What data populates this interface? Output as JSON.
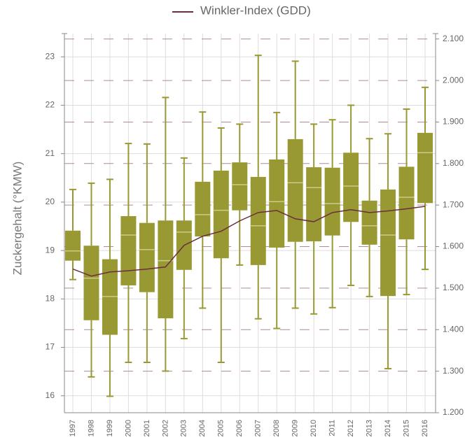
{
  "chart_data": {
    "type": "box",
    "legend_position": "top",
    "y_label": "Zuckergehalt (°KMW)",
    "categories": [
      "1997",
      "1998",
      "1999",
      "2000",
      "2001",
      "2002",
      "2003",
      "2004",
      "2005",
      "2006",
      "2007",
      "2008",
      "2009",
      "2010",
      "2011",
      "2012",
      "2013",
      "2014",
      "2015",
      "2016"
    ],
    "box_color": "#999933",
    "median_color": "#cccc88",
    "boxes": [
      {
        "low": 18.4,
        "q1": 18.79,
        "median": 18.99,
        "q3": 19.41,
        "high": 20.26
      },
      {
        "low": 16.39,
        "q1": 17.56,
        "median": 18.43,
        "q3": 19.1,
        "high": 20.39
      },
      {
        "low": 15.99,
        "q1": 17.26,
        "median": 18.05,
        "q3": 18.82,
        "high": 20.47
      },
      {
        "low": 16.69,
        "q1": 18.28,
        "median": 19.32,
        "q3": 19.71,
        "high": 21.21
      },
      {
        "low": 16.69,
        "q1": 18.14,
        "median": 19.02,
        "q3": 19.57,
        "high": 21.2
      },
      {
        "low": 16.51,
        "q1": 17.6,
        "median": 18.79,
        "q3": 19.62,
        "high": 22.16
      },
      {
        "low": 17.18,
        "q1": 18.6,
        "median": 19.38,
        "q3": 19.62,
        "high": 20.91
      },
      {
        "low": 17.81,
        "q1": 19.29,
        "median": 19.74,
        "q3": 20.42,
        "high": 21.86
      },
      {
        "low": 16.69,
        "q1": 18.84,
        "median": 19.83,
        "q3": 20.65,
        "high": 21.53
      },
      {
        "low": 18.7,
        "q1": 19.83,
        "median": 20.36,
        "q3": 20.82,
        "high": 21.61
      },
      {
        "low": 17.59,
        "q1": 18.7,
        "median": 19.51,
        "q3": 20.52,
        "high": 23.03
      },
      {
        "low": 17.39,
        "q1": 19.06,
        "median": 20.01,
        "q3": 20.88,
        "high": 21.85
      },
      {
        "low": 17.81,
        "q1": 19.18,
        "median": 20.4,
        "q3": 21.3,
        "high": 22.91
      },
      {
        "low": 17.69,
        "q1": 19.19,
        "median": 20.3,
        "q3": 20.72,
        "high": 21.61
      },
      {
        "low": 17.82,
        "q1": 19.31,
        "median": 19.97,
        "q3": 20.71,
        "high": 21.7
      },
      {
        "low": 18.28,
        "q1": 19.59,
        "median": 20.33,
        "q3": 21.02,
        "high": 22.0
      },
      {
        "low": 18.05,
        "q1": 19.12,
        "median": 19.51,
        "q3": 20.03,
        "high": 21.31
      },
      {
        "low": 16.56,
        "q1": 18.06,
        "median": 19.32,
        "q3": 20.26,
        "high": 21.41
      },
      {
        "low": 18.09,
        "q1": 19.23,
        "median": 20.1,
        "q3": 20.73,
        "high": 21.92
      },
      {
        "low": 18.61,
        "q1": 19.98,
        "median": 21.02,
        "q3": 21.43,
        "high": 22.37
      }
    ],
    "series": [
      {
        "name": "Winkler-Index (GDD)",
        "color": "#6b2e3e",
        "axis": "y2",
        "values": [
          1.546,
          1.529,
          1.539,
          1.542,
          1.546,
          1.551,
          1.603,
          1.625,
          1.637,
          1.662,
          1.682,
          1.687,
          1.667,
          1.66,
          1.682,
          1.689,
          1.682,
          1.686,
          1.691,
          1.697
        ]
      }
    ],
    "ylim": [
      15.65,
      23.48
    ],
    "yticks": [
      16,
      17,
      18,
      19,
      20,
      21,
      22,
      23
    ],
    "y2lim": [
      1.2,
      2.113
    ],
    "y2ticks": [
      {
        "value": 1.2,
        "label": "1.200"
      },
      {
        "value": 1.3,
        "label": "1.300"
      },
      {
        "value": 1.4,
        "label": "1.400"
      },
      {
        "value": 1.5,
        "label": "1.500"
      },
      {
        "value": 1.6,
        "label": "1.600"
      },
      {
        "value": 1.7,
        "label": "1.700"
      },
      {
        "value": 1.8,
        "label": "1.800"
      },
      {
        "value": 1.9,
        "label": "1.900"
      },
      {
        "value": 2.0,
        "label": "2.000"
      },
      {
        "value": 2.1,
        "label": "2.100"
      }
    ],
    "grid": true
  }
}
